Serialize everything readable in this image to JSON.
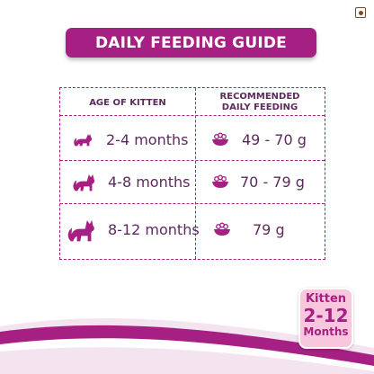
{
  "title": "DAILY FEEDING GUIDE",
  "table": {
    "header_age": "AGE OF KITTEN",
    "header_feed_line1": "RECOMMENDED",
    "header_feed_line2": "DAILY FEEDING",
    "rows": [
      {
        "age": "2-4 months",
        "amount": "49 - 70 g",
        "icon": "cat-icon"
      },
      {
        "age": "4-8 months",
        "amount": "70 - 79 g",
        "icon": "cat-icon"
      },
      {
        "age": "8-12 months",
        "amount": "79 g",
        "icon": "cat-icon"
      }
    ]
  },
  "badge": {
    "brand": "Kitten",
    "range": "2-12",
    "unit": "Months"
  },
  "colors": {
    "accent": "#a61f83",
    "text": "#5c2a5c",
    "badge_bg": "#f9c7dd"
  }
}
